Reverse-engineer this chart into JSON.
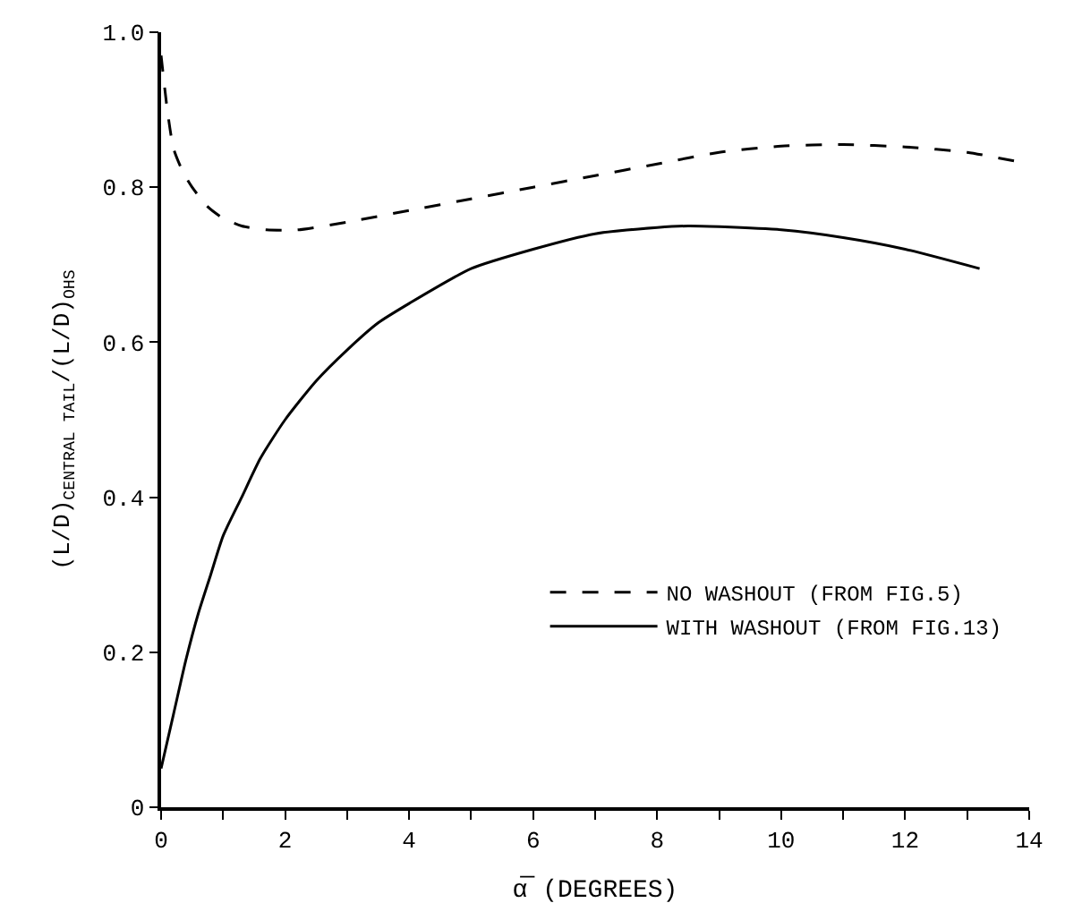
{
  "chart_data": {
    "type": "line",
    "xlabel": "α̅ (DEGREES)",
    "ylabel": "(L/D)$_{CENTRAL TAIL}$/(L/D)$_{OHS}$",
    "xlim": [
      0,
      14
    ],
    "ylim": [
      0,
      1.0
    ],
    "xticks": [
      0,
      {
        "value": 1,
        "label": null
      },
      2,
      {
        "value": 3,
        "label": null
      },
      4,
      {
        "value": 5,
        "label": null
      },
      6,
      {
        "value": 7,
        "label": null
      },
      8,
      {
        "value": 9,
        "label": null
      },
      10,
      {
        "value": 11,
        "label": null
      },
      12,
      {
        "value": 13,
        "label": null
      },
      14
    ],
    "yticks": [
      0,
      0.2,
      0.4,
      0.6,
      0.8,
      {
        "value": 1,
        "label": "1.0"
      }
    ],
    "legend": "bottom right",
    "marker": "none",
    "series": [
      {
        "name": "NO WASHOUT (FROM FIG.5)",
        "color": "#000000",
        "line_style": "dashed",
        "x": [
          0,
          0.1,
          0.2,
          0.35,
          0.5,
          0.75,
          1.0,
          1.3,
          1.7,
          2.2,
          3,
          4,
          5,
          6,
          7,
          8,
          9,
          10,
          11,
          12,
          13,
          14
        ],
        "values": [
          0.97,
          0.9,
          0.85,
          0.82,
          0.8,
          0.775,
          0.76,
          0.75,
          0.745,
          0.745,
          0.755,
          0.77,
          0.785,
          0.8,
          0.815,
          0.83,
          0.845,
          0.853,
          0.855,
          0.852,
          0.845,
          0.83
        ]
      },
      {
        "name": "WITH WASHOUT (FROM FIG.13)",
        "color": "#000000",
        "line_style": "solid",
        "x": [
          0,
          0.2,
          0.4,
          0.6,
          0.8,
          1.0,
          1.3,
          1.6,
          2.0,
          2.5,
          3,
          3.5,
          4,
          5,
          6,
          7,
          8,
          8.5,
          9,
          10,
          11,
          12,
          13.2
        ],
        "values": [
          0.05,
          0.12,
          0.19,
          0.25,
          0.3,
          0.35,
          0.4,
          0.45,
          0.5,
          0.55,
          0.59,
          0.625,
          0.65,
          0.695,
          0.72,
          0.74,
          0.748,
          0.75,
          0.749,
          0.745,
          0.735,
          0.72,
          0.695
        ]
      }
    ]
  }
}
